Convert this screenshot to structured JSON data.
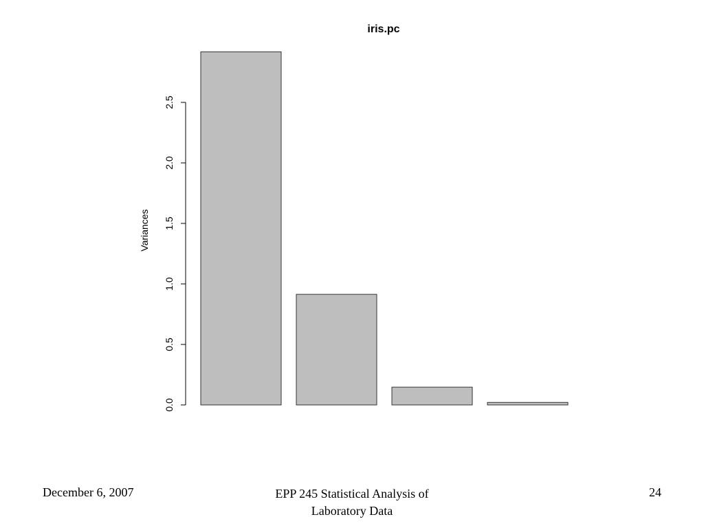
{
  "chart_data": {
    "type": "bar",
    "title": "iris.pc",
    "xlabel": "",
    "ylabel": "Variances",
    "categories": [
      "",
      "",
      "",
      ""
    ],
    "values": [
      2.918,
      0.914,
      0.147,
      0.021
    ],
    "ylim": [
      0,
      2.92
    ],
    "yticks": [
      0.0,
      0.5,
      1.0,
      1.5,
      2.0,
      2.5
    ],
    "ytick_labels": [
      "0.0",
      "0.5",
      "1.0",
      "1.5",
      "2.0",
      "2.5"
    ],
    "grid": false,
    "legend": "none",
    "bar_fill": "#bebebe",
    "bar_stroke": "#333333"
  },
  "footer": {
    "date": "December 6, 2007",
    "course_line1": "EPP 245 Statistical Analysis of",
    "course_line2": "Laboratory Data",
    "page_number": "24"
  }
}
